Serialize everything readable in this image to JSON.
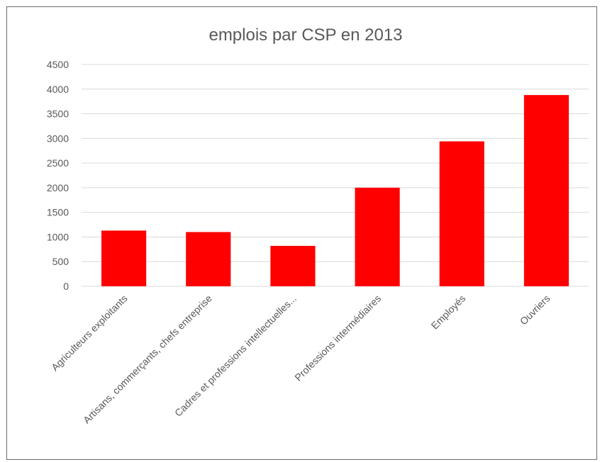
{
  "chart_data": {
    "type": "bar",
    "title": "emplois par CSP en 2013",
    "xlabel": "",
    "ylabel": "",
    "categories": [
      "Agriculteurs exploitants",
      "Artisans, commerçants, chefs entreprise",
      "Cadres et professions intellectuelles...",
      "Professions intermédiaires",
      "Employés",
      "Ouvriers"
    ],
    "values": [
      1130,
      1100,
      820,
      2000,
      2940,
      3880
    ],
    "ylim": [
      0,
      4500
    ],
    "yticks": [
      0,
      500,
      1000,
      1500,
      2000,
      2500,
      3000,
      3500,
      4000,
      4500
    ],
    "grid": true,
    "legend": "none",
    "bar_color": "#ff0000",
    "gridline_color": "#d9d9d9",
    "text_color": "#595959"
  }
}
